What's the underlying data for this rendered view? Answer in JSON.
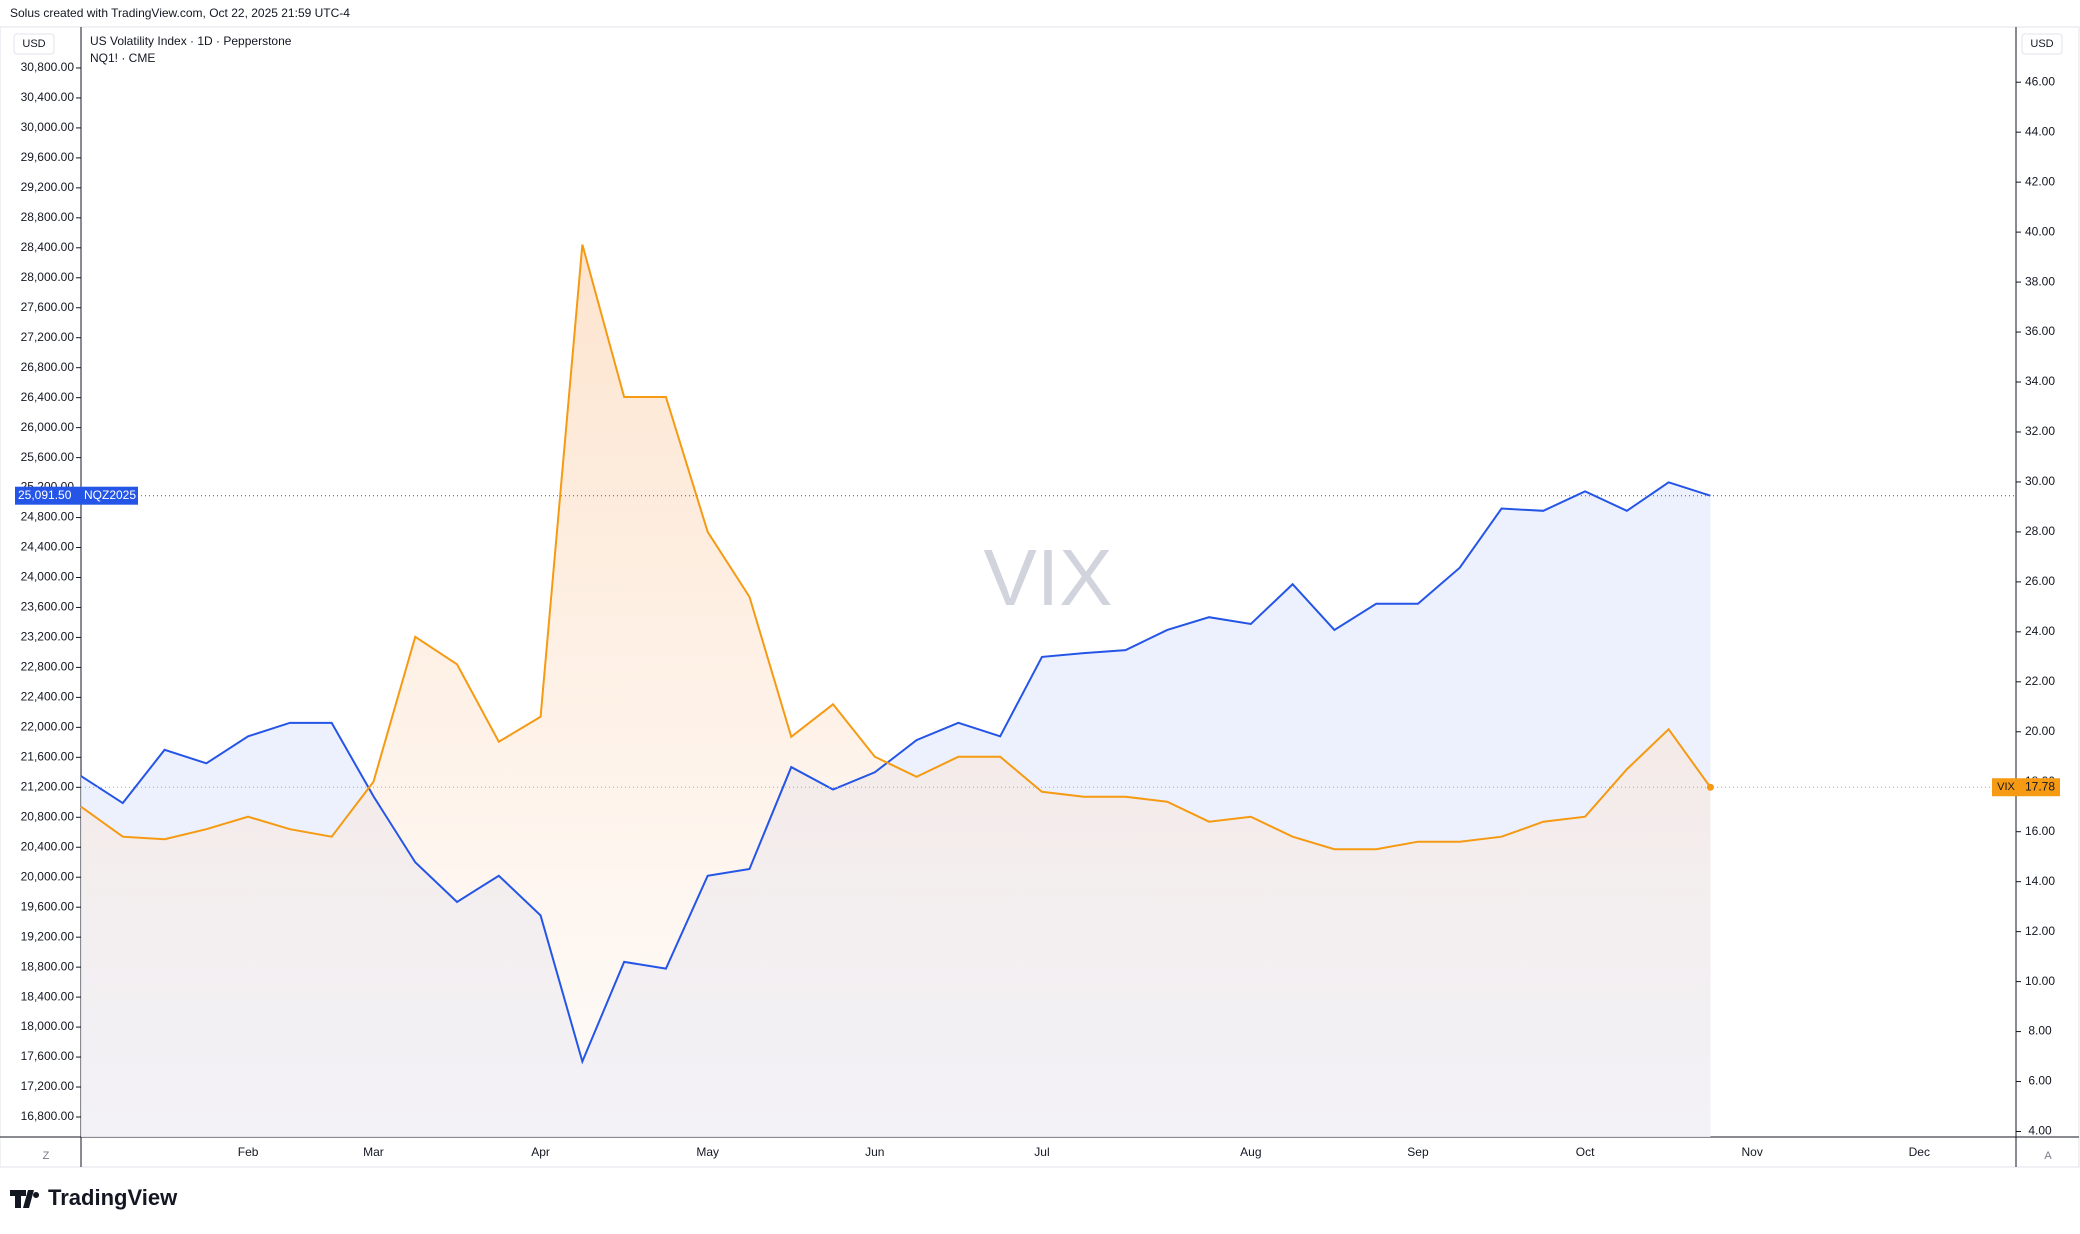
{
  "header": "Solus created with TradingView.com, Oct 22, 2025 21:59 UTC-4",
  "brand": "TradingView",
  "chart_data": {
    "type": "line",
    "title": "US Volatility Index · 1D · Pepperstone",
    "watermark": "VIX",
    "currency": "USD",
    "x_buttons": [
      "Z",
      "A"
    ],
    "categories": [
      null,
      null,
      null,
      null,
      "Feb",
      null,
      null,
      "Mar",
      null,
      null,
      null,
      "Apr",
      null,
      null,
      null,
      "May",
      null,
      null,
      null,
      "Jun",
      null,
      null,
      null,
      "Jul",
      null,
      null,
      null,
      null,
      "Aug",
      null,
      null,
      null,
      "Sep",
      null,
      null,
      null,
      "Oct",
      null,
      null,
      null,
      "Nov",
      null,
      null,
      null,
      "Dec",
      null,
      null
    ],
    "ylim": [
      16533,
      31320
    ],
    "y2lim": [
      3.78,
      48.13
    ],
    "yticks": [
      {
        "value": 16800,
        "label": "16,800.00"
      },
      {
        "value": 17200,
        "label": "17,200.00"
      },
      {
        "value": 17600,
        "label": "17,600.00"
      },
      {
        "value": 18000,
        "label": "18,000.00"
      },
      {
        "value": 18400,
        "label": "18,400.00"
      },
      {
        "value": 18800,
        "label": "18,800.00"
      },
      {
        "value": 19200,
        "label": "19,200.00"
      },
      {
        "value": 19600,
        "label": "19,600.00"
      },
      {
        "value": 20000,
        "label": "20,000.00"
      },
      {
        "value": 20400,
        "label": "20,400.00"
      },
      {
        "value": 20800,
        "label": "20,800.00"
      },
      {
        "value": 21200,
        "label": "21,200.00"
      },
      {
        "value": 21600,
        "label": "21,600.00"
      },
      {
        "value": 22000,
        "label": "22,000.00"
      },
      {
        "value": 22400,
        "label": "22,400.00"
      },
      {
        "value": 22800,
        "label": "22,800.00"
      },
      {
        "value": 23200,
        "label": "23,200.00"
      },
      {
        "value": 23600,
        "label": "23,600.00"
      },
      {
        "value": 24000,
        "label": "24,000.00"
      },
      {
        "value": 24400,
        "label": "24,400.00"
      },
      {
        "value": 24800,
        "label": "24,800.00"
      },
      {
        "value": 25200,
        "label": "25,200.00"
      },
      {
        "value": 25600,
        "label": "25,600.00"
      },
      {
        "value": 26000,
        "label": "26,000.00"
      },
      {
        "value": 26400,
        "label": "26,400.00"
      },
      {
        "value": 26800,
        "label": "26,800.00"
      },
      {
        "value": 27200,
        "label": "27,200.00"
      },
      {
        "value": 27600,
        "label": "27,600.00"
      },
      {
        "value": 28000,
        "label": "28,000.00"
      },
      {
        "value": 28400,
        "label": "28,400.00"
      },
      {
        "value": 28800,
        "label": "28,800.00"
      },
      {
        "value": 29200,
        "label": "29,200.00"
      },
      {
        "value": 29600,
        "label": "29,600.00"
      },
      {
        "value": 30000,
        "label": "30,000.00"
      },
      {
        "value": 30400,
        "label": "30,400.00"
      },
      {
        "value": 30800,
        "label": "30,800.00"
      }
    ],
    "y2ticks": [
      {
        "value": 4,
        "label": "4.00"
      },
      {
        "value": 6,
        "label": "6.00"
      },
      {
        "value": 8,
        "label": "8.00"
      },
      {
        "value": 10,
        "label": "10.00"
      },
      {
        "value": 12,
        "label": "12.00"
      },
      {
        "value": 14,
        "label": "14.00"
      },
      {
        "value": 16,
        "label": "16.00"
      },
      {
        "value": 18,
        "label": "18.00"
      },
      {
        "value": 20,
        "label": "20.00"
      },
      {
        "value": 22,
        "label": "22.00"
      },
      {
        "value": 24,
        "label": "24.00"
      },
      {
        "value": 26,
        "label": "26.00"
      },
      {
        "value": 28,
        "label": "28.00"
      },
      {
        "value": 30,
        "label": "30.00"
      },
      {
        "value": 32,
        "label": "32.00"
      },
      {
        "value": 34,
        "label": "34.00"
      },
      {
        "value": 36,
        "label": "36.00"
      },
      {
        "value": 38,
        "label": "38.00"
      },
      {
        "value": 40,
        "label": "40.00"
      },
      {
        "value": 42,
        "label": "42.00"
      },
      {
        "value": 44,
        "label": "44.00"
      },
      {
        "value": 46,
        "label": "46.00"
      }
    ],
    "series": [
      {
        "name": "NQ1! · CME",
        "symbol": "NQZ2025",
        "color": "#2455e6",
        "area": "#e9eefc",
        "values": [
          21350,
          20990,
          21700,
          21520,
          21880,
          22060,
          22060,
          21080,
          20200,
          19670,
          20020,
          19490,
          17540,
          18870,
          18780,
          20020,
          20110,
          21470,
          21170,
          21400,
          21830,
          22060,
          21880,
          22940,
          22990,
          23030,
          23300,
          23470,
          23380,
          23910,
          23300,
          23650,
          23650,
          24130,
          24920,
          24890,
          25150,
          24890,
          25270,
          25091.5,
          null,
          null,
          null,
          null,
          null,
          null,
          null
        ],
        "value_labels": [
          null,
          null,
          null,
          null,
          null,
          null,
          null,
          null,
          null,
          null,
          null,
          null,
          null,
          null,
          null,
          null,
          null,
          null,
          null,
          null,
          null,
          null,
          null,
          null,
          null,
          null,
          null,
          null,
          null,
          null,
          null,
          null,
          null,
          null,
          null,
          null,
          null,
          null,
          null,
          "25,091.50",
          null,
          null,
          null,
          null,
          null,
          null,
          null
        ]
      },
      {
        "name": "VIX",
        "axis": "y2",
        "color": "#f59a12",
        "area": "#fbd9bd",
        "values": [
          17.0,
          15.8,
          15.7,
          16.1,
          16.6,
          16.1,
          15.8,
          18.0,
          23.8,
          22.7,
          19.6,
          20.6,
          39.5,
          33.4,
          33.4,
          28.0,
          25.4,
          19.8,
          21.1,
          19.0,
          18.2,
          19.0,
          19.0,
          17.6,
          17.4,
          17.4,
          17.2,
          16.4,
          16.6,
          15.8,
          15.3,
          15.3,
          15.6,
          15.6,
          15.8,
          16.4,
          16.6,
          18.5,
          20.1,
          17.78,
          null,
          null,
          null,
          null,
          null,
          null,
          null
        ]
      }
    ]
  }
}
